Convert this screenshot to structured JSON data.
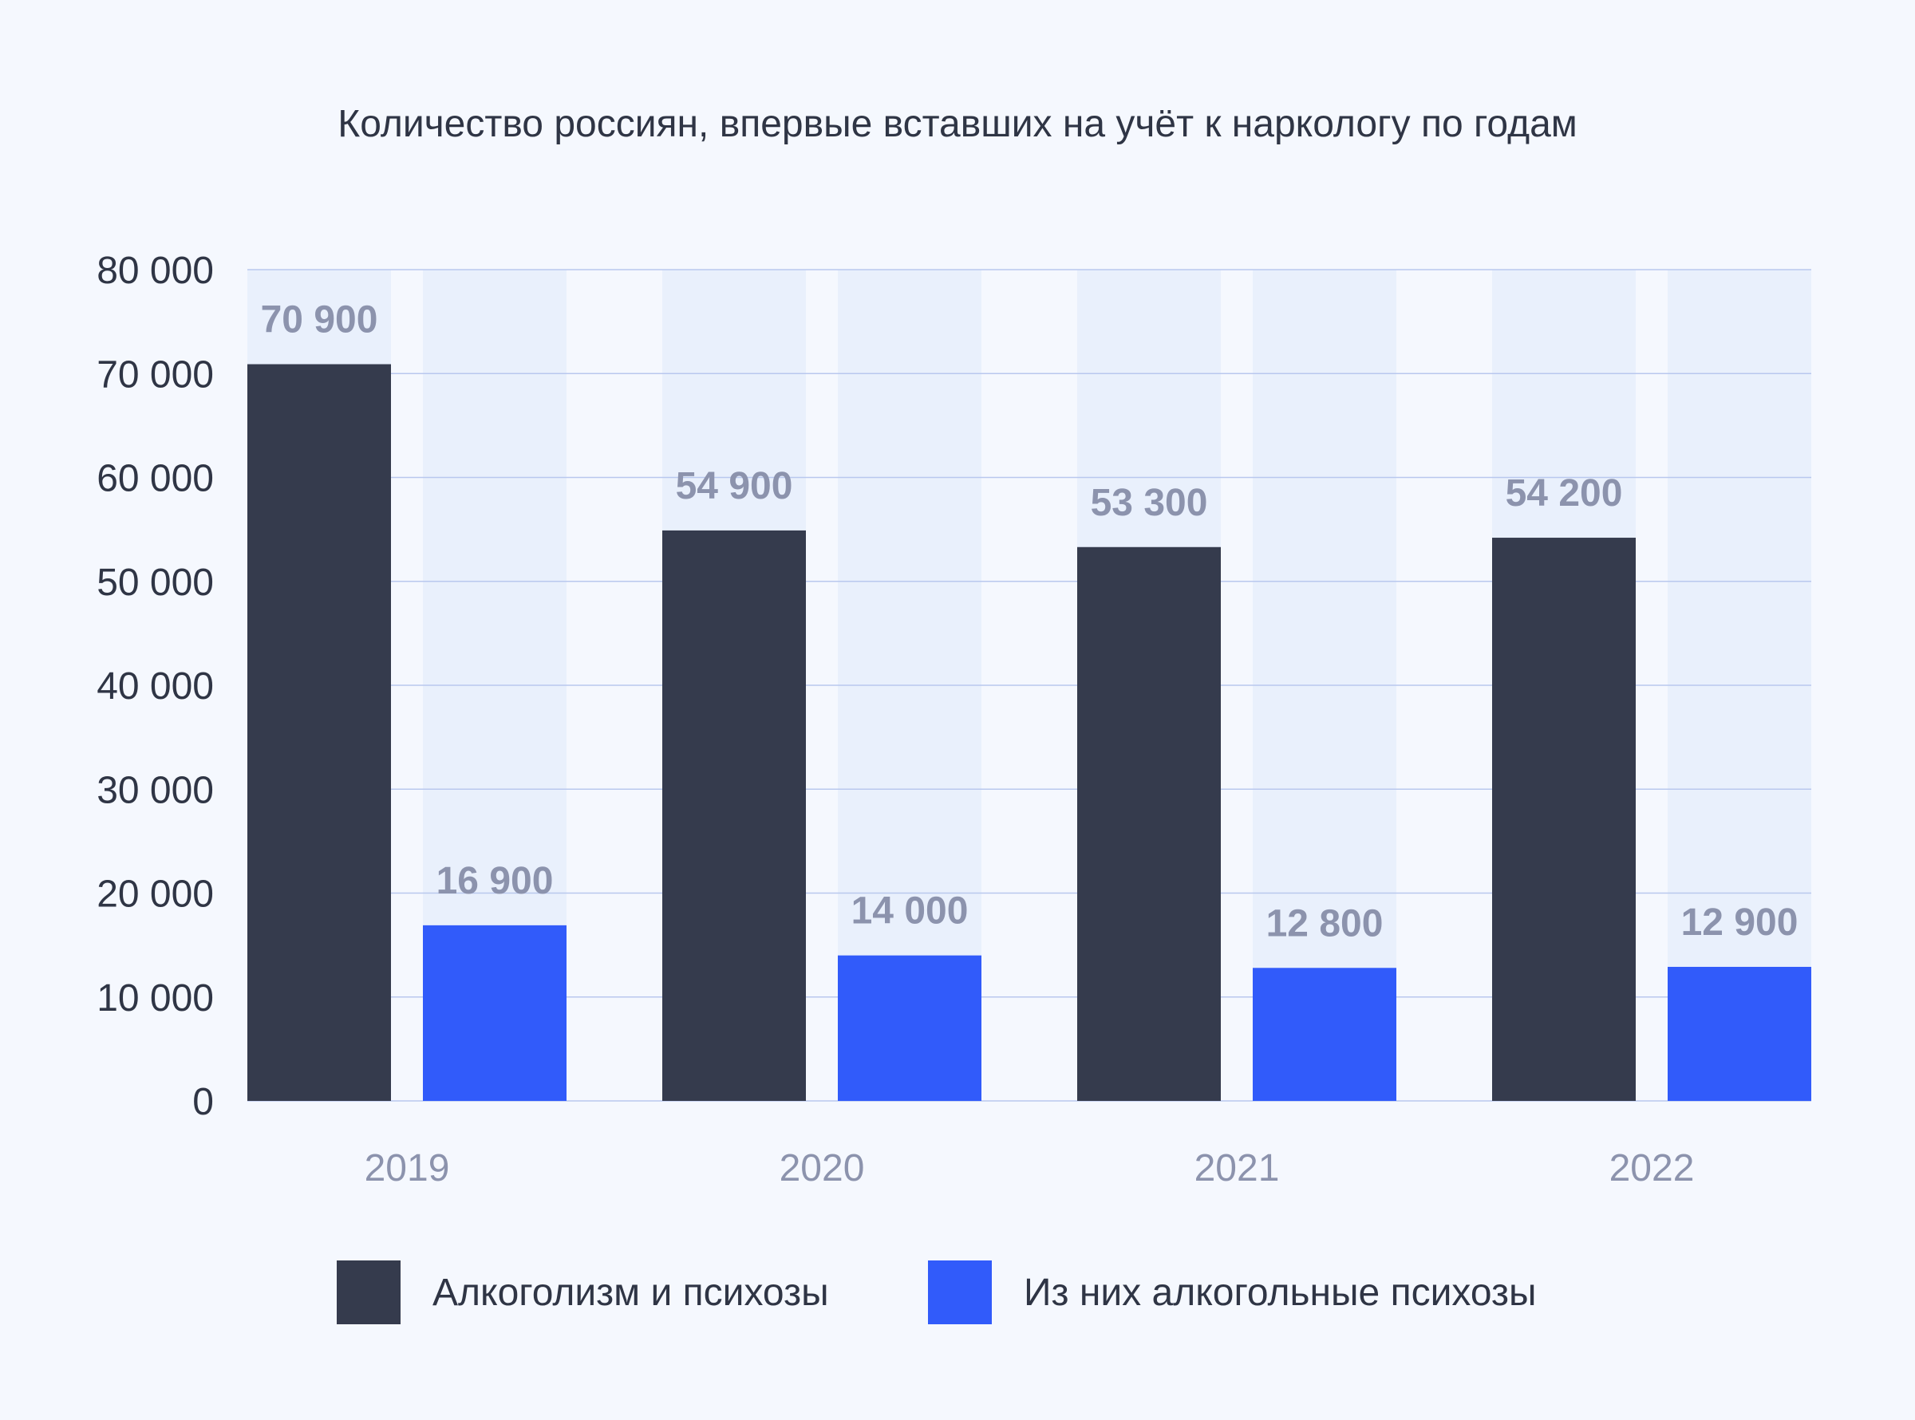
{
  "chart_data": {
    "type": "bar",
    "title": "Количество россиян, впервые вставших на учёт к наркологу по годам",
    "categories": [
      "2019",
      "2020",
      "2021",
      "2022"
    ],
    "series": [
      {
        "name": "Алкоголизм и психозы",
        "values": [
          70900,
          54900,
          53300,
          54200
        ],
        "value_labels": [
          "70 900",
          "54 900",
          "53 300",
          "54 200"
        ],
        "color": "#353b4d"
      },
      {
        "name": "Из них алкогольные психозы",
        "values": [
          16900,
          14000,
          12800,
          12900
        ],
        "value_labels": [
          "16 900",
          "14 000",
          "12 800",
          "12 900"
        ],
        "color": "#315bfa"
      }
    ],
    "ylim": [
      0,
      80000
    ],
    "yticks": [
      0,
      10000,
      20000,
      30000,
      40000,
      50000,
      60000,
      70000,
      80000
    ],
    "ytick_labels": [
      "0",
      "10 000",
      "20 000",
      "30 000",
      "40 000",
      "50 000",
      "60 000",
      "70 000",
      "80 000"
    ],
    "xlabel": "",
    "ylabel": "",
    "grid": true,
    "legend_position": "bottom"
  },
  "colors": {
    "background": "#f5f8fe",
    "bar_track": "#e9f0fc",
    "gridline": "#b9c8ee",
    "tick_label": "#2f3545",
    "category_label": "#8c93ad",
    "value_label": "#8c93ad"
  }
}
